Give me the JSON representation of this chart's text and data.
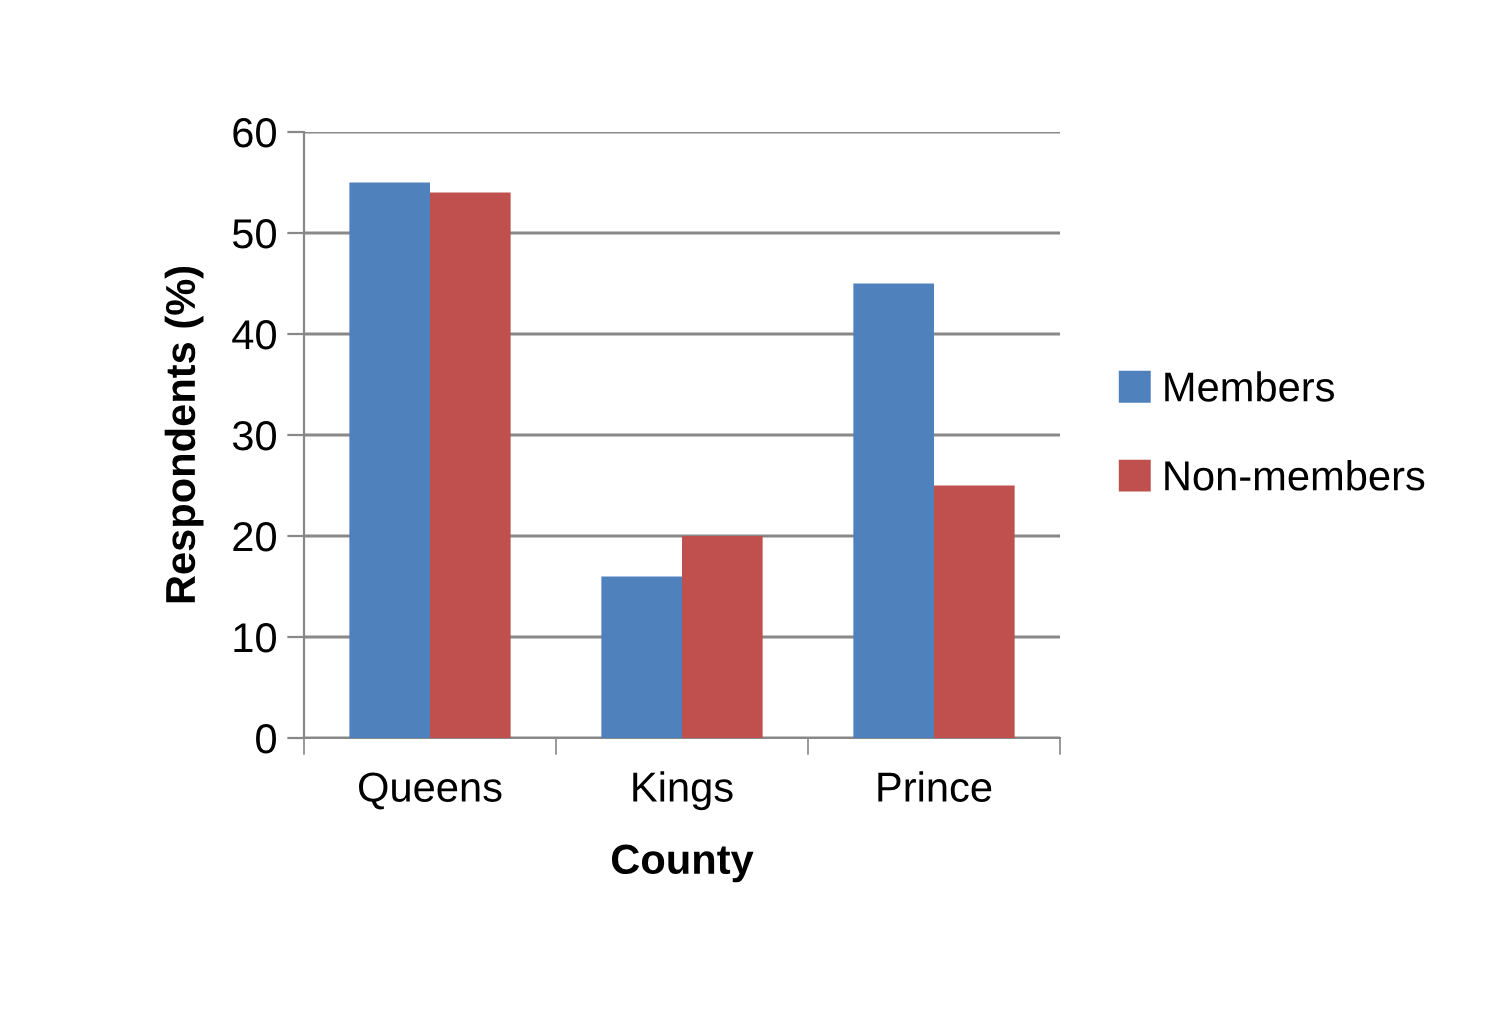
{
  "chart_data": {
    "type": "bar",
    "xlabel": "County",
    "ylabel": "Respondents (%)",
    "categories": [
      "Queens",
      "Kings",
      "Prince"
    ],
    "series": [
      {
        "name": "Members",
        "color": "#4f81bd",
        "values": [
          55,
          16,
          45
        ]
      },
      {
        "name": "Non-members",
        "color": "#c0504d",
        "values": [
          54,
          20,
          25
        ]
      }
    ],
    "ylim": [
      0,
      60
    ],
    "yticks": [
      0,
      10,
      20,
      30,
      40,
      50,
      60
    ],
    "grid": "y",
    "legend": "right"
  }
}
